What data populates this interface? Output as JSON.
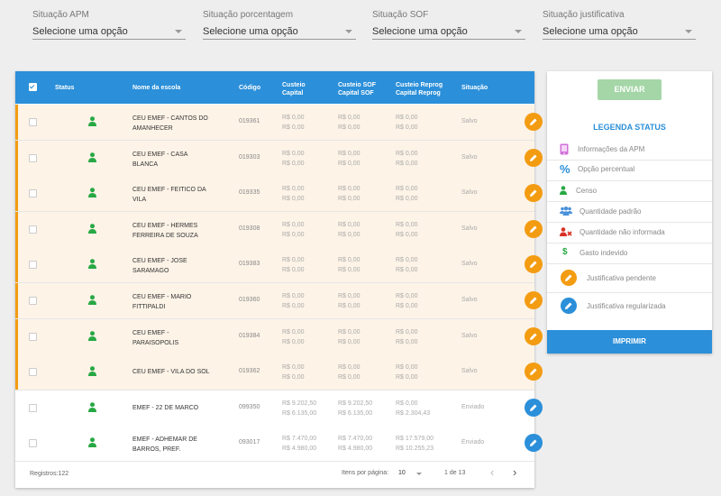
{
  "filters": [
    {
      "label": "Situação APM",
      "value": "Selecione uma opção"
    },
    {
      "label": "Situação porcentagem",
      "value": "Selecione uma opção"
    },
    {
      "label": "Situação SOF",
      "value": "Selecione uma opção"
    },
    {
      "label": "Situação justificativa",
      "value": "Selecione uma opção"
    }
  ],
  "table": {
    "headers": {
      "status": "Status",
      "nome": "Nome da escola",
      "codigo": "Código",
      "custeio1": "Custeio",
      "custeio2": "Capital",
      "sof1": "Custeio SOF",
      "sof2": "Capital SOF",
      "reprog1": "Custeio Reprog",
      "reprog2": "Capital Reprog",
      "situacao": "Situação"
    },
    "rows": [
      {
        "name1": "CEU EMEF - CANTOS DO",
        "name2": "AMANHECER",
        "code": "019361",
        "custeio": "R$ 0,00",
        "capital": "R$ 0,00",
        "custeio_sof": "R$ 0,00",
        "capital_sof": "R$ 0,00",
        "custeio_reprog": "R$ 0,00",
        "capital_reprog": "R$ 0,00",
        "situacao": "Salvo"
      },
      {
        "name1": "CEU EMEF - CASA",
        "name2": "BLANCA",
        "code": "019303",
        "custeio": "R$ 0,00",
        "capital": "R$ 0,00",
        "custeio_sof": "R$ 0,00",
        "capital_sof": "R$ 0,00",
        "custeio_reprog": "R$ 0,00",
        "capital_reprog": "R$ 0,00",
        "situacao": "Salvo"
      },
      {
        "name1": "CEU EMEF - FEITICO DA",
        "name2": "VILA",
        "code": "019335",
        "custeio": "R$ 0,00",
        "capital": "R$ 0,00",
        "custeio_sof": "R$ 0,00",
        "capital_sof": "R$ 0,00",
        "custeio_reprog": "R$ 0,00",
        "capital_reprog": "R$ 0,00",
        "situacao": "Salvo"
      },
      {
        "name1": "CEU EMEF - HERMES",
        "name2": "FERREIRA DE SOUZA",
        "code": "019308",
        "custeio": "R$ 0,00",
        "capital": "R$ 0,00",
        "custeio_sof": "R$ 0,00",
        "capital_sof": "R$ 0,00",
        "custeio_reprog": "R$ 0,00",
        "capital_reprog": "R$ 0,00",
        "situacao": "Salvo"
      },
      {
        "name1": "CEU EMEF - JOSE",
        "name2": "SARAMAGO",
        "code": "019383",
        "custeio": "R$ 0,00",
        "capital": "R$ 0,00",
        "custeio_sof": "R$ 0,00",
        "capital_sof": "R$ 0,00",
        "custeio_reprog": "R$ 0,00",
        "capital_reprog": "R$ 0,00",
        "situacao": "Salvo"
      },
      {
        "name1": "CEU EMEF - MARIO",
        "name2": "FITTIPALDI",
        "code": "019360",
        "custeio": "R$ 0,00",
        "capital": "R$ 0,00",
        "custeio_sof": "R$ 0,00",
        "capital_sof": "R$ 0,00",
        "custeio_reprog": "R$ 0,00",
        "capital_reprog": "R$ 0,00",
        "situacao": "Salvo"
      },
      {
        "name1": "CEU EMEF -",
        "name2": "PARAISOPOLIS",
        "code": "019384",
        "custeio": "R$ 0,00",
        "capital": "R$ 0,00",
        "custeio_sof": "R$ 0,00",
        "capital_sof": "R$ 0,00",
        "custeio_reprog": "R$ 0,00",
        "capital_reprog": "R$ 0,00",
        "situacao": "Salvo"
      },
      {
        "name1": "CEU EMEF - VILA DO SOL",
        "name2": "",
        "code": "019362",
        "custeio": "R$ 0,00",
        "capital": "R$ 0,00",
        "custeio_sof": "R$ 0,00",
        "capital_sof": "R$ 0,00",
        "custeio_reprog": "R$ 0,00",
        "capital_reprog": "R$ 0,00",
        "situacao": "Salvo"
      },
      {
        "name1": "EMEF - 22 DE MARCO",
        "name2": "",
        "code": "099350",
        "custeio": "R$ 9.202,50",
        "capital": "R$ 6.135,00",
        "custeio_sof": "R$ 9.202,50",
        "capital_sof": "R$ 6.135,00",
        "custeio_reprog": "R$ 0,00",
        "capital_reprog": "R$ 2.304,43",
        "situacao": "Enviado"
      },
      {
        "name1": "EMEF - ADHEMAR DE",
        "name2": "BARROS, PREF.",
        "code": "093017",
        "custeio": "R$ 7.470,00",
        "capital": "R$ 4.980,00",
        "custeio_sof": "R$ 7.470,00",
        "capital_sof": "R$ 4.980,00",
        "custeio_reprog": "R$ 17.579,00",
        "capital_reprog": "R$ 10.255,23",
        "situacao": "Enviado"
      }
    ],
    "footer": {
      "registros": "Registros:122",
      "itens_label": "Itens por página:",
      "itens_value": "10",
      "page": "1 de 13"
    }
  },
  "legend": {
    "enviar": "ENVIAR",
    "title": "LEGENDA STATUS",
    "items": [
      {
        "label": "Informações da APM",
        "icon": "phone-icon"
      },
      {
        "label": "Opção percentual",
        "icon": "percent-icon"
      },
      {
        "label": "Censo",
        "icon": "person-icon"
      },
      {
        "label": "Quantidade padrão",
        "icon": "group-icon"
      },
      {
        "label": "Quantidade não informada",
        "icon": "person-x-icon"
      },
      {
        "label": "Gasto indevido",
        "icon": "dollar-icon"
      },
      {
        "label": "Justificativa pendente",
        "icon": "pencil-orange-icon"
      },
      {
        "label": "Justificativa regularizada",
        "icon": "pencil-blue-icon"
      }
    ],
    "imprimir": "IMPRIMIR"
  },
  "colors": {
    "primary": "#2b8fd9",
    "orange": "#f39c12",
    "green": "#27a844",
    "enviar_bg": "#a5d6a7",
    "salvo_bg": "#fdf3e7"
  }
}
